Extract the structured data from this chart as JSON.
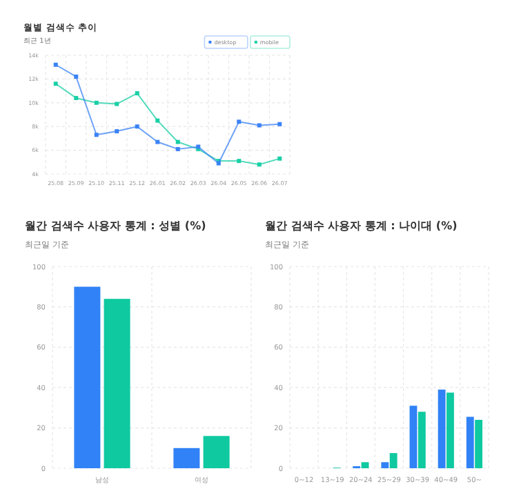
{
  "chart_data": [
    {
      "type": "line",
      "title": "월별 검색수 추이",
      "subtitle": "최근 1년",
      "categories": [
        "25.08",
        "25.09",
        "25.10",
        "25.11",
        "25.12",
        "26.01",
        "26.02",
        "26.03",
        "26.04",
        "26.05",
        "26.06",
        "26.07"
      ],
      "ylim": [
        4,
        14
      ],
      "yticks": [
        {
          "value": 4,
          "label": "4k"
        },
        {
          "value": 6,
          "label": "6k"
        },
        {
          "value": 8,
          "label": "8k"
        },
        {
          "value": 10,
          "label": "10k"
        },
        {
          "value": 12,
          "label": "12k"
        },
        {
          "value": 14,
          "label": "14k"
        }
      ],
      "grid": true,
      "legend": "top right",
      "marker": "square",
      "line_style": "solid",
      "series": [
        {
          "name": "desktop",
          "color": "#3b82f6",
          "values": [
            13.2,
            12.2,
            7.3,
            7.6,
            8.0,
            6.7,
            6.1,
            6.3,
            4.9,
            8.4,
            8.1,
            8.2
          ]
        },
        {
          "name": "mobile",
          "color": "#19cfa6",
          "values": [
            11.6,
            10.4,
            10.0,
            9.9,
            10.8,
            8.5,
            6.7,
            6.1,
            5.1,
            5.1,
            4.8,
            5.3
          ]
        }
      ]
    },
    {
      "type": "bar",
      "title": "월간 검색수 사용자 통계 : 성별 (%)",
      "subtitle": "최근일 기준",
      "categories": [
        "남성",
        "여성"
      ],
      "ylim": [
        0,
        100
      ],
      "yticks": [
        0,
        20,
        40,
        60,
        80,
        100
      ],
      "grid": true,
      "series": [
        {
          "color": "#3182f6",
          "values": [
            90,
            10
          ]
        },
        {
          "color": "#0fc9a0",
          "values": [
            84,
            16
          ]
        }
      ]
    },
    {
      "type": "bar",
      "title": "월간 검색수 사용자 통계 : 나이대 (%)",
      "subtitle": "최근일 기준",
      "categories": [
        "0~12",
        "13~19",
        "20~24",
        "25~29",
        "30~39",
        "40~49",
        "50~"
      ],
      "ylim": [
        0,
        100
      ],
      "yticks": [
        0,
        20,
        40,
        60,
        80,
        100
      ],
      "grid": true,
      "series": [
        {
          "color": "#3182f6",
          "values": [
            0,
            0,
            1,
            3,
            31,
            39,
            25.5
          ]
        },
        {
          "color": "#0fc9a0",
          "values": [
            0,
            0.3,
            3,
            7.5,
            28,
            37.5,
            24
          ]
        }
      ]
    }
  ]
}
